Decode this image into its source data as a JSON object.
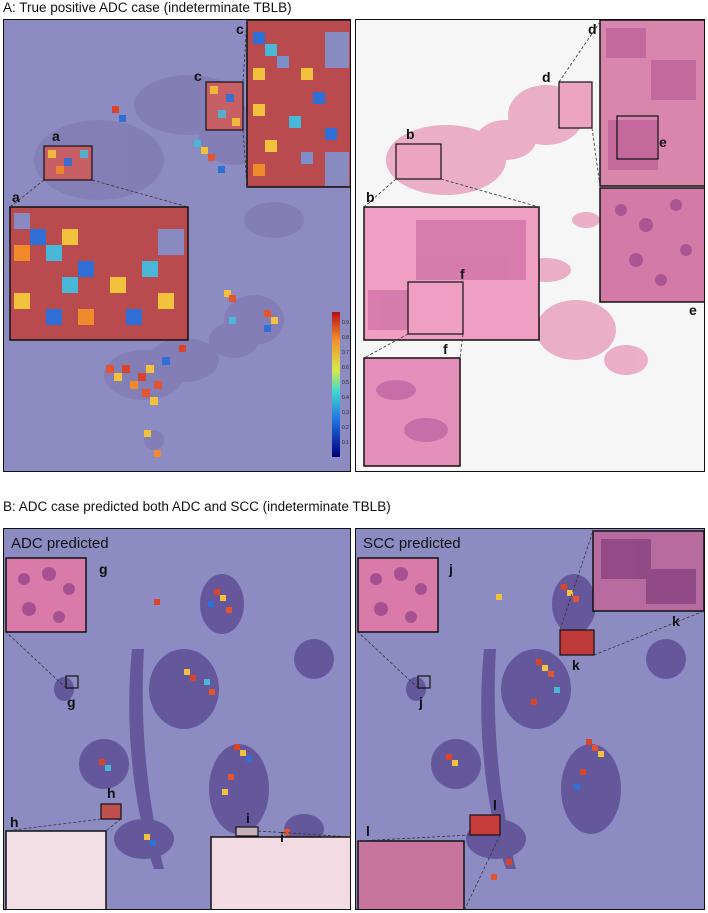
{
  "figure": {
    "panel_a_title": "A: True positive ADC case (indeterminate TBLB)",
    "panel_b_title": "B: ADC case predicted both ADC and SCC (indeterminate TBLB)",
    "adc_subtitle": "ADC predicted",
    "scc_subtitle": "SCC predicted",
    "labels": {
      "a": "a",
      "b": "b",
      "c": "c",
      "d": "d",
      "e": "e",
      "f": "f",
      "g": "g",
      "h": "h",
      "i": "i",
      "j": "j",
      "k": "k",
      "l": "l"
    },
    "colorbar_ticks": [
      "0.9",
      "0.8",
      "0.7",
      "0.6",
      "0.5",
      "0.4",
      "0.3",
      "0.2",
      "0.1"
    ],
    "colors": {
      "heatmap_bg": "#8e8ec4",
      "tissue_pink": "#e9a8c4",
      "tissue_purple": "#6d5a9c",
      "hot": "#d9432a",
      "warm": "#f2c23a",
      "cool": "#2f6fd6"
    }
  }
}
